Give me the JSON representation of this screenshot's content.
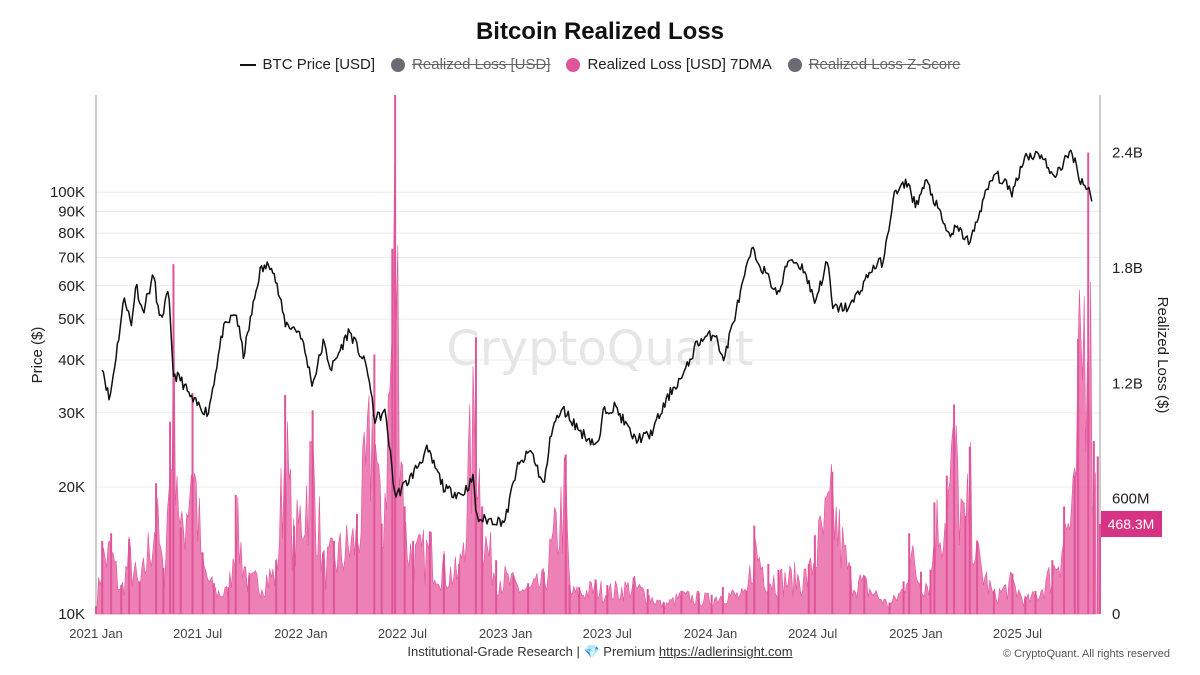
{
  "header": {
    "title": "Bitcoin Realized Loss"
  },
  "legend": [
    {
      "label": "BTC Price [USD]",
      "marker": "line",
      "color": "#111111",
      "struck": false
    },
    {
      "label": "Realized Loss [USD]",
      "marker": "dot",
      "color": "#6b6b73",
      "struck": true
    },
    {
      "label": "Realized Loss [USD] 7DMA",
      "marker": "dot",
      "color": "#e0559a",
      "struck": false
    },
    {
      "label": "Realized Loss Z-Score",
      "marker": "dot",
      "color": "#6b6b73",
      "struck": true
    }
  ],
  "footer": {
    "prefix": "Institutional-Grade Research | ",
    "gem": "💎",
    "premium": " Premium ",
    "link": "https://adlerinsight.com",
    "copyright": "© CryptoQuant. All rights reserved"
  },
  "watermark": "CryptoQuant",
  "colors": {
    "price": "#111111",
    "loss": "#e0559a",
    "loss_fill": "#ea6aa8",
    "badge": "#d63384",
    "grid": "#ececec"
  },
  "chart_data": {
    "type": "line",
    "title": "Bitcoin Realized Loss",
    "x_ticks": [
      "2021 Jan",
      "2021 Jul",
      "2022 Jan",
      "2022 Jul",
      "2023 Jan",
      "2023 Jul",
      "2024 Jan",
      "2024 Jul",
      "2025 Jan",
      "2025 Jul"
    ],
    "x_range": [
      "2021-01-01",
      "2025-11-25"
    ],
    "y_left": {
      "label": "Price ($)",
      "scale": "log",
      "range": [
        10000,
        170000
      ],
      "ticks": [
        10000,
        20000,
        30000,
        40000,
        50000,
        60000,
        70000,
        80000,
        90000,
        100000
      ],
      "tick_labels": [
        "10K",
        "20K",
        "30K",
        "40K",
        "50K",
        "60K",
        "70K",
        "80K",
        "90K",
        "100K"
      ]
    },
    "y_right": {
      "label": "Realized Loss ($)",
      "scale": "linear",
      "range": [
        0,
        2700000000
      ],
      "ticks": [
        0,
        600000000,
        1200000000,
        1800000000,
        2400000000
      ],
      "tick_labels": [
        "0",
        "600M",
        "1.2B",
        "1.8B",
        "2.4B"
      ]
    },
    "last_value_label": "468.3M",
    "series": [
      {
        "name": "BTC Price [USD]",
        "axis": "left",
        "points": [
          [
            "2021-01-01",
            29000
          ],
          [
            "2021-01-10",
            40000
          ],
          [
            "2021-01-25",
            32000
          ],
          [
            "2021-02-10",
            45000
          ],
          [
            "2021-02-21",
            57000
          ],
          [
            "2021-03-05",
            48000
          ],
          [
            "2021-03-13",
            61000
          ],
          [
            "2021-03-25",
            52000
          ],
          [
            "2021-04-14",
            63500
          ],
          [
            "2021-04-25",
            49000
          ],
          [
            "2021-05-10",
            58000
          ],
          [
            "2021-05-19",
            37000
          ],
          [
            "2021-06-01",
            36000
          ],
          [
            "2021-06-22",
            32000
          ],
          [
            "2021-07-20",
            30000
          ],
          [
            "2021-08-15",
            47000
          ],
          [
            "2021-09-07",
            52000
          ],
          [
            "2021-09-21",
            41000
          ],
          [
            "2021-10-20",
            65000
          ],
          [
            "2021-11-10",
            68000
          ],
          [
            "2021-12-04",
            49000
          ],
          [
            "2021-12-31",
            46500
          ],
          [
            "2022-01-22",
            35000
          ],
          [
            "2022-02-10",
            44000
          ],
          [
            "2022-02-24",
            38000
          ],
          [
            "2022-03-28",
            47000
          ],
          [
            "2022-04-30",
            38000
          ],
          [
            "2022-05-12",
            29000
          ],
          [
            "2022-06-01",
            30000
          ],
          [
            "2022-06-18",
            19000
          ],
          [
            "2022-07-15",
            21000
          ],
          [
            "2022-08-14",
            24500
          ],
          [
            "2022-09-15",
            19700
          ],
          [
            "2022-10-15",
            19200
          ],
          [
            "2022-11-05",
            21000
          ],
          [
            "2022-11-10",
            16800
          ],
          [
            "2022-12-31",
            16600
          ],
          [
            "2023-01-20",
            22000
          ],
          [
            "2023-02-15",
            24500
          ],
          [
            "2023-03-10",
            20000
          ],
          [
            "2023-03-25",
            28000
          ],
          [
            "2023-04-14",
            30500
          ],
          [
            "2023-05-15",
            27000
          ],
          [
            "2023-06-15",
            25000
          ],
          [
            "2023-06-25",
            30500
          ],
          [
            "2023-07-15",
            31000
          ],
          [
            "2023-08-18",
            26000
          ],
          [
            "2023-09-15",
            26500
          ],
          [
            "2023-10-24",
            34000
          ],
          [
            "2023-11-15",
            37000
          ],
          [
            "2023-12-08",
            44000
          ],
          [
            "2024-01-11",
            46500
          ],
          [
            "2024-01-23",
            39500
          ],
          [
            "2024-02-15",
            52000
          ],
          [
            "2024-03-14",
            73000
          ],
          [
            "2024-05-01",
            57000
          ],
          [
            "2024-05-20",
            70000
          ],
          [
            "2024-06-15",
            66000
          ],
          [
            "2024-07-05",
            55000
          ],
          [
            "2024-07-28",
            69000
          ],
          [
            "2024-08-05",
            53000
          ],
          [
            "2024-09-06",
            53500
          ],
          [
            "2024-10-15",
            66000
          ],
          [
            "2024-11-05",
            69000
          ],
          [
            "2024-11-22",
            98000
          ],
          [
            "2024-12-17",
            106000
          ],
          [
            "2024-12-31",
            93000
          ],
          [
            "2025-01-20",
            106000
          ],
          [
            "2025-02-28",
            79000
          ],
          [
            "2025-03-15",
            82000
          ],
          [
            "2025-04-08",
            76000
          ],
          [
            "2025-05-01",
            96000
          ],
          [
            "2025-05-22",
            111000
          ],
          [
            "2025-06-22",
            100000
          ],
          [
            "2025-07-14",
            122000
          ],
          [
            "2025-08-14",
            123000
          ],
          [
            "2025-09-01",
            108000
          ],
          [
            "2025-10-06",
            125000
          ],
          [
            "2025-10-20",
            108000
          ],
          [
            "2025-11-05",
            101000
          ],
          [
            "2025-11-21",
            84000
          ],
          [
            "2025-11-25",
            87000
          ]
        ]
      },
      {
        "name": "Realized Loss [USD] 7DMA",
        "axis": "right",
        "points": [
          [
            "2021-01-01",
            40000000
          ],
          [
            "2021-01-12",
            380000000
          ],
          [
            "2021-01-28",
            420000000
          ],
          [
            "2021-02-15",
            150000000
          ],
          [
            "2021-03-01",
            390000000
          ],
          [
            "2021-03-20",
            170000000
          ],
          [
            "2021-04-18",
            680000000
          ],
          [
            "2021-05-01",
            240000000
          ],
          [
            "2021-05-13",
            1000000000
          ],
          [
            "2021-05-19",
            1820000000
          ],
          [
            "2021-06-01",
            450000000
          ],
          [
            "2021-06-22",
            1150000000
          ],
          [
            "2021-07-10",
            320000000
          ],
          [
            "2021-07-30",
            160000000
          ],
          [
            "2021-08-25",
            140000000
          ],
          [
            "2021-09-07",
            620000000
          ],
          [
            "2021-10-01",
            200000000
          ],
          [
            "2021-11-18",
            280000000
          ],
          [
            "2021-12-04",
            1140000000
          ],
          [
            "2021-12-20",
            460000000
          ],
          [
            "2022-01-22",
            1060000000
          ],
          [
            "2022-02-10",
            320000000
          ],
          [
            "2022-03-01",
            380000000
          ],
          [
            "2022-04-11",
            520000000
          ],
          [
            "2022-05-12",
            1350000000
          ],
          [
            "2022-05-25",
            470000000
          ],
          [
            "2022-06-13",
            1900000000
          ],
          [
            "2022-06-18",
            2700000000
          ],
          [
            "2022-07-05",
            560000000
          ],
          [
            "2022-07-20",
            380000000
          ],
          [
            "2022-08-19",
            430000000
          ],
          [
            "2022-09-13",
            310000000
          ],
          [
            "2022-10-10",
            260000000
          ],
          [
            "2022-11-09",
            1440000000
          ],
          [
            "2022-11-20",
            560000000
          ],
          [
            "2022-12-15",
            280000000
          ],
          [
            "2023-01-15",
            200000000
          ],
          [
            "2023-02-10",
            160000000
          ],
          [
            "2023-03-10",
            220000000
          ],
          [
            "2023-04-18",
            830000000
          ],
          [
            "2023-04-25",
            150000000
          ],
          [
            "2023-05-12",
            140000000
          ],
          [
            "2023-06-10",
            180000000
          ],
          [
            "2023-07-01",
            150000000
          ],
          [
            "2023-08-17",
            190000000
          ],
          [
            "2023-09-11",
            130000000
          ],
          [
            "2023-10-10",
            60000000
          ],
          [
            "2023-11-10",
            120000000
          ],
          [
            "2023-12-11",
            110000000
          ],
          [
            "2024-01-03",
            100000000
          ],
          [
            "2024-01-23",
            140000000
          ],
          [
            "2024-03-05",
            120000000
          ],
          [
            "2024-03-19",
            460000000
          ],
          [
            "2024-04-13",
            260000000
          ],
          [
            "2024-05-01",
            230000000
          ],
          [
            "2024-06-24",
            260000000
          ],
          [
            "2024-07-05",
            410000000
          ],
          [
            "2024-08-05",
            740000000
          ],
          [
            "2024-09-06",
            250000000
          ],
          [
            "2024-10-01",
            200000000
          ],
          [
            "2024-11-15",
            60000000
          ],
          [
            "2024-12-10",
            170000000
          ],
          [
            "2024-12-20",
            420000000
          ],
          [
            "2025-01-10",
            220000000
          ],
          [
            "2025-01-27",
            230000000
          ],
          [
            "2025-02-03",
            580000000
          ],
          [
            "2025-02-25",
            720000000
          ],
          [
            "2025-03-10",
            1090000000
          ],
          [
            "2025-03-30",
            510000000
          ],
          [
            "2025-04-07",
            870000000
          ],
          [
            "2025-04-20",
            380000000
          ],
          [
            "2025-05-20",
            120000000
          ],
          [
            "2025-06-22",
            210000000
          ],
          [
            "2025-07-15",
            90000000
          ],
          [
            "2025-08-02",
            120000000
          ],
          [
            "2025-09-01",
            280000000
          ],
          [
            "2025-09-22",
            560000000
          ],
          [
            "2025-10-11",
            720000000
          ],
          [
            "2025-10-17",
            1430000000
          ],
          [
            "2025-11-04",
            2400000000
          ],
          [
            "2025-11-14",
            900000000
          ],
          [
            "2025-11-21",
            820000000
          ],
          [
            "2025-11-25",
            468300000
          ]
        ]
      }
    ]
  }
}
